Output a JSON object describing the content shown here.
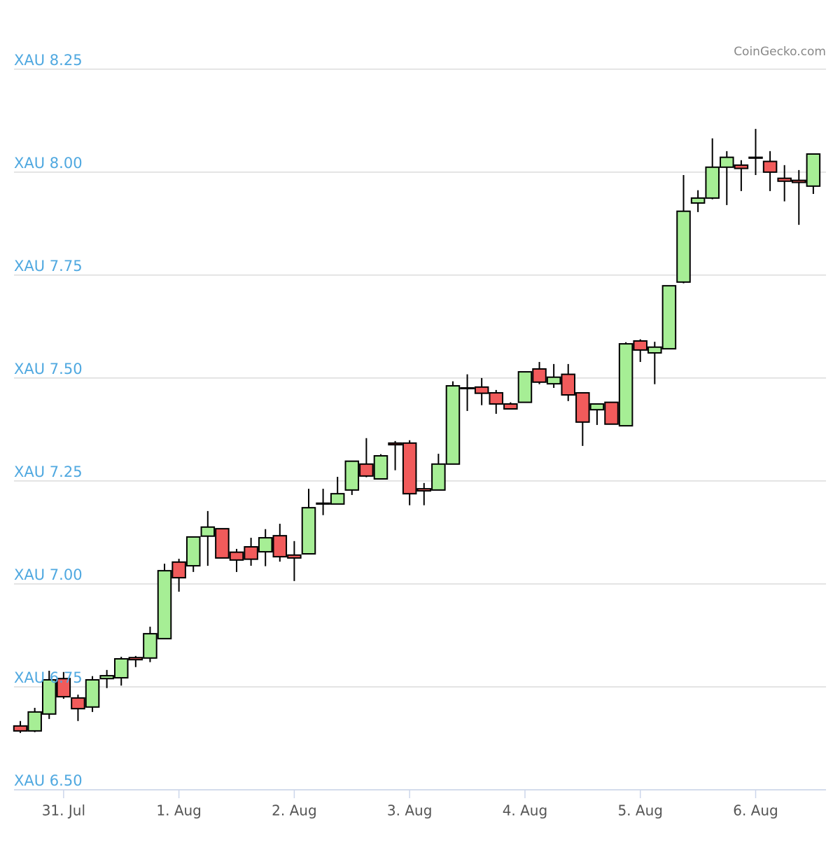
{
  "chart_data": {
    "type": "candlestick",
    "attribution": "CoinGecko.com",
    "up_color": "#a6ee95",
    "down_color": "#f15b5b",
    "grid": true,
    "xlim": [
      -0.43,
      6.61
    ],
    "ylim": [
      6.5,
      8.384
    ],
    "xticks": [
      {
        "value": 0,
        "label": "31. Jul"
      },
      {
        "value": 1,
        "label": "1. Aug"
      },
      {
        "value": 2,
        "label": "2. Aug"
      },
      {
        "value": 3,
        "label": "3. Aug"
      },
      {
        "value": 4,
        "label": "4. Aug"
      },
      {
        "value": 5,
        "label": "5. Aug"
      },
      {
        "value": 6,
        "label": "6. Aug"
      }
    ],
    "yticks": [
      {
        "value": 6.5,
        "label": "XAU 6.50"
      },
      {
        "value": 6.75,
        "label": "XAU 6.75"
      },
      {
        "value": 7,
        "label": "XAU 7.00"
      },
      {
        "value": 7.25,
        "label": "XAU 7.25"
      },
      {
        "value": 7.5,
        "label": "XAU 7.50"
      },
      {
        "value": 7.75,
        "label": "XAU 7.75"
      },
      {
        "value": 8,
        "label": "XAU 8.00"
      },
      {
        "value": 8.25,
        "label": "XAU 8.25"
      }
    ],
    "x": [
      -0.375,
      -0.25,
      -0.125,
      0,
      0.125,
      0.25,
      0.375,
      0.5,
      0.625,
      0.75,
      0.875,
      1,
      1.125,
      1.25,
      1.375,
      1.5,
      1.625,
      1.75,
      1.875,
      2,
      2.125,
      2.25,
      2.375,
      2.5,
      2.625,
      2.75,
      2.875,
      3,
      3.125,
      3.25,
      3.375,
      3.5,
      3.625,
      3.75,
      3.875,
      4,
      4.125,
      4.25,
      4.375,
      4.5,
      4.625,
      4.75,
      4.875,
      5,
      5.125,
      5.25,
      5.375,
      5.5,
      5.625,
      5.75,
      5.875,
      6,
      6.125,
      6.25,
      6.375,
      6.5
    ],
    "open": [
      6.655,
      6.643,
      6.684,
      6.77,
      6.723,
      6.701,
      6.77,
      6.772,
      6.821,
      6.82,
      6.867,
      7.053,
      7.044,
      7.116,
      7.134,
      7.077,
      7.09,
      7.078,
      7.117,
      7.07,
      7.073,
      7.194,
      7.194,
      7.228,
      7.291,
      7.255,
      7.342,
      7.342,
      7.231,
      7.228,
      7.291,
      7.476,
      7.478,
      7.464,
      7.437,
      7.441,
      7.522,
      7.486,
      7.509,
      7.464,
      7.423,
      7.441,
      7.384,
      7.59,
      7.561,
      7.571,
      7.733,
      7.925,
      7.937,
      8.012,
      8.017,
      8.036,
      8.026,
      7.985,
      7.98,
      7.966
    ],
    "high": [
      6.667,
      6.699,
      6.789,
      6.786,
      6.731,
      6.776,
      6.791,
      6.823,
      6.825,
      6.896,
      7.049,
      7.061,
      7.114,
      7.177,
      7.134,
      7.085,
      7.112,
      7.133,
      7.146,
      7.104,
      7.231,
      7.231,
      7.26,
      7.298,
      7.354,
      7.315,
      7.347,
      7.349,
      7.245,
      7.316,
      7.492,
      7.509,
      7.5,
      7.471,
      7.441,
      7.515,
      7.539,
      7.534,
      7.534,
      7.464,
      7.437,
      7.441,
      7.587,
      7.594,
      7.588,
      7.724,
      7.993,
      7.956,
      8.082,
      8.051,
      8.029,
      8.105,
      8.051,
      8.017,
      8.005,
      8.044
    ],
    "low": [
      6.638,
      6.64,
      6.672,
      6.721,
      6.667,
      6.689,
      6.747,
      6.753,
      6.798,
      6.81,
      6.867,
      6.981,
      7.029,
      7.044,
      7.063,
      7.029,
      7.044,
      7.043,
      7.054,
      7.007,
      7.073,
      7.167,
      7.194,
      7.216,
      7.259,
      7.255,
      7.276,
      7.191,
      7.191,
      7.228,
      7.291,
      7.42,
      7.434,
      7.413,
      7.425,
      7.441,
      7.485,
      7.476,
      7.444,
      7.335,
      7.386,
      7.388,
      7.384,
      7.539,
      7.485,
      7.571,
      7.73,
      7.903,
      7.934,
      7.92,
      7.954,
      7.993,
      7.954,
      7.929,
      7.872,
      7.947
    ],
    "close": [
      6.643,
      6.689,
      6.767,
      6.726,
      6.697,
      6.767,
      6.777,
      6.818,
      6.816,
      6.879,
      7.032,
      7.015,
      7.114,
      7.138,
      7.063,
      7.058,
      7.06,
      7.112,
      7.066,
      7.063,
      7.185,
      7.196,
      7.219,
      7.298,
      7.262,
      7.311,
      7.338,
      7.219,
      7.226,
      7.291,
      7.481,
      7.475,
      7.463,
      7.437,
      7.425,
      7.515,
      7.49,
      7.502,
      7.459,
      7.393,
      7.437,
      7.388,
      7.583,
      7.568,
      7.575,
      7.724,
      7.905,
      7.937,
      8.012,
      8.036,
      8.009,
      8.034,
      8.0,
      7.978,
      7.975,
      8.044
    ]
  }
}
